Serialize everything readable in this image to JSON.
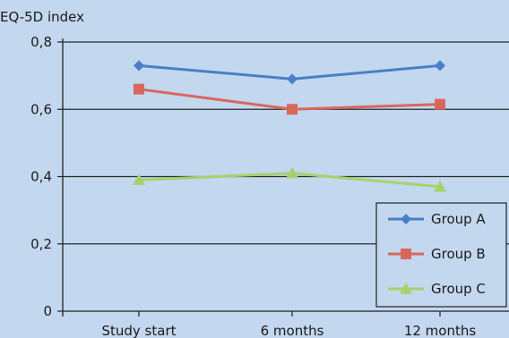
{
  "chart_data": {
    "type": "line",
    "ylabel": "EQ-5D index",
    "xlabel": "",
    "categories": [
      "Study start",
      "6 months",
      "12 months"
    ],
    "ylim": [
      0,
      0.8
    ],
    "yticks": [
      0,
      0.2,
      0.4,
      0.6,
      0.8
    ],
    "ytick_labels": [
      "0",
      "0,2",
      "0,4",
      "0,6",
      "0,8"
    ],
    "grid": "horizontal",
    "legend_position": "bottom-right",
    "series": [
      {
        "name": "Group A",
        "values": [
          0.73,
          0.69,
          0.73
        ],
        "color": "#4a7fc8",
        "marker": "diamond"
      },
      {
        "name": "Group B",
        "values": [
          0.66,
          0.6,
          0.615
        ],
        "color": "#d9675c",
        "marker": "square"
      },
      {
        "name": "Group C",
        "values": [
          0.39,
          0.41,
          0.37
        ],
        "color": "#a6d16a",
        "marker": "triangle"
      }
    ]
  }
}
